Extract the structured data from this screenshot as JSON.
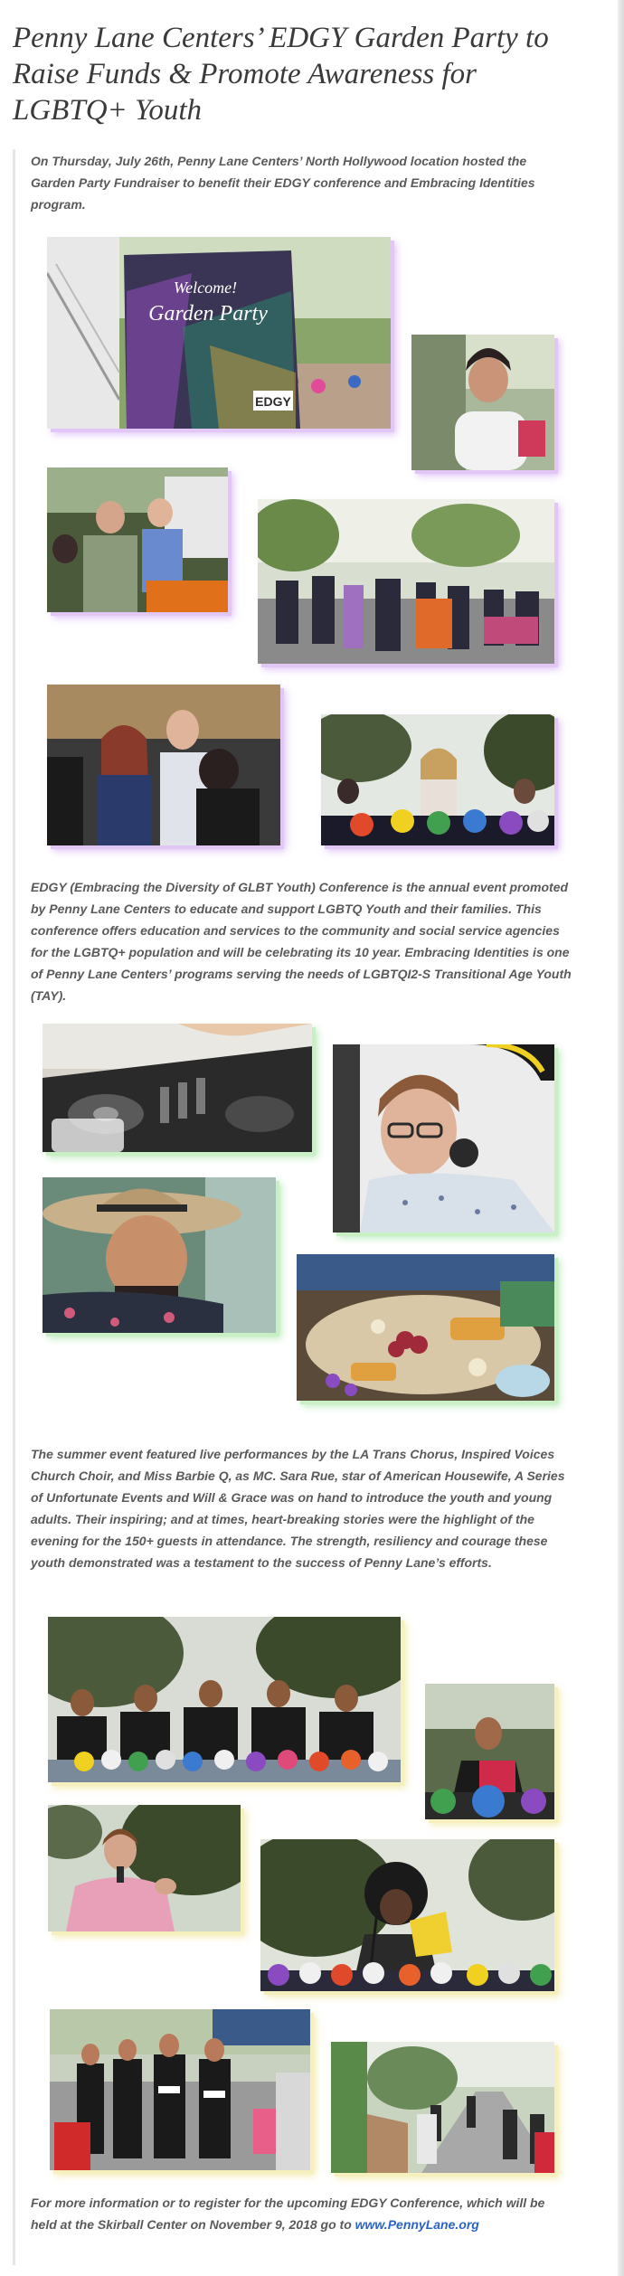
{
  "title": "Penny Lane Centers’ EDGY Garden Party to Raise Funds & Promote Awareness for LGBTQ+ Youth",
  "intro": "On Thursday, July 26th, Penny Lane Centers’ North Hollywood location hosted the Garden Party Fundraiser to benefit their EDGY conference and Embracing Identities program.",
  "edgy_paragraph": " EDGY (Embracing the Diversity of GLBT Youth) Conference is the annual event promoted by Penny Lane Centers to educate and support LGBTQ Youth and their families.  This conference offers education and services to the community and social service agencies for the LGBTQ+ population and will be celebrating its 10 year. Embracing Identities is one of Penny Lane Centers’ programs serving the needs of LGBTQI2-S Transitional Age Youth (TAY).",
  "summer_paragraph": " The summer event featured live performances by the LA Trans Chorus, Inspired Voices Church Choir, and Miss Barbie Q, as MC. Sara Rue, star of American Housewife, A Series of Unfortunate Events and Will & Grace was on hand to introduce the youth and young adults.  Their inspiring; and at times, heart-breaking stories were the highlight of the evening for the 150+ guests in attendance. The strength, resiliency and courage these youth demonstrated was a testament to the success of Penny Lane’s efforts.",
  "closing": {
    "text": "For more information or to register for the upcoming EDGY Conference, which will be held at the Skirball Center on November 9, 2018 go to",
    "link_label": "www.PennyLane.org"
  },
  "sign": {
    "welcome": "Welcome!",
    "garden_party": "Garden Party",
    "edgy": "EDGY"
  },
  "colors": {
    "glow_purple": "#e2c6f5",
    "glow_green": "#c9efc4",
    "glow_yellow": "#f6f0bf",
    "link": "#2a63c7",
    "text": "#5a5a5a",
    "title": "#3a3a3a"
  }
}
